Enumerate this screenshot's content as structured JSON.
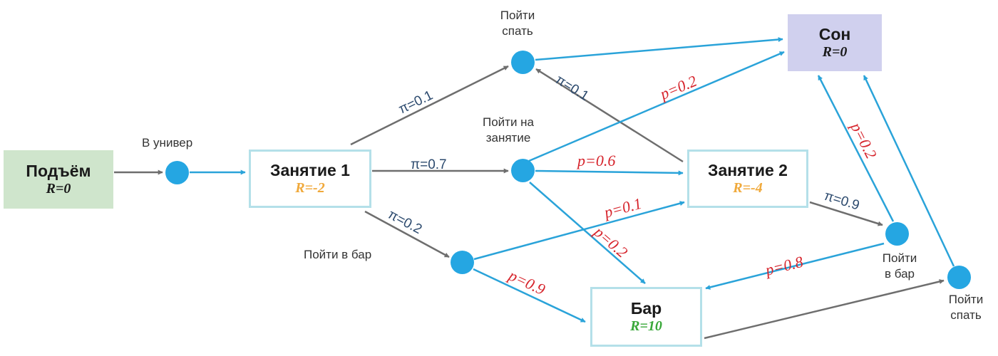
{
  "colors": {
    "action_dot": "#25a6e2",
    "blue_arrow": "#2aa3d9",
    "gray_arrow": "#6e6e6e",
    "policy_text": "#2c4a6e",
    "probability_text": "#d6232b",
    "reward_negative": "#f0a93b",
    "reward_positive": "#3aa83a",
    "reward_neutral": "#1a1a1a"
  },
  "states": {
    "wake": {
      "name": "Подъём",
      "reward": "R=0"
    },
    "lesson1": {
      "name": "Занятие 1",
      "reward": "R=-2"
    },
    "lesson2": {
      "name": "Занятие 2",
      "reward": "R=-4"
    },
    "bar": {
      "name": "Бар",
      "reward": "R=10"
    },
    "sleep": {
      "name": "Сон",
      "reward": "R=0"
    }
  },
  "actions": {
    "to_univ": "В универ",
    "sleep_from_lesson1": "Пойти спать",
    "go_to_lesson": "Пойти на занятие",
    "bar_from_lesson1": "Пойти в бар",
    "bar_from_lesson2": "Пойти в бар",
    "sleep_from_bar": "Пойти спать"
  },
  "policy_labels": {
    "lesson1_sleep": "π=0.1",
    "lesson1_lesson": "π=0.7",
    "lesson1_bar": "π=0.2",
    "lesson2_sleep": "π=0.1",
    "lesson2_bar": "π=0.9"
  },
  "transition_labels": {
    "lesson_to_sleep": "p=0.2",
    "lesson_to_lesson2": "p=0.6",
    "lesson_to_bar": "p=0.2",
    "bar1_to_lesson2": "p=0.1",
    "bar1_to_bar": "p=0.9",
    "bar2_to_bar": "p=0.8",
    "bar2_to_sleep": "p=0.2"
  }
}
